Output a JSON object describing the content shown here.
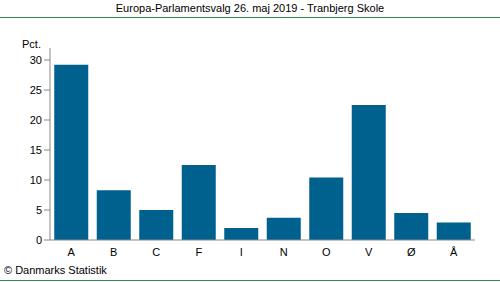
{
  "chart_data": {
    "type": "bar",
    "title": "Europa-Parlamentsvalg 26. maj 2019 - Tranbjerg Skole",
    "ylabel": "Pct.",
    "annotations": [
      "© Danmarks Statistik"
    ],
    "categories": [
      "A",
      "B",
      "C",
      "F",
      "I",
      "N",
      "O",
      "V",
      "Ø",
      "Å"
    ],
    "values": [
      29.2,
      8.3,
      5.0,
      12.5,
      2.0,
      3.7,
      10.4,
      22.5,
      4.5,
      2.9
    ],
    "color": "#00618f",
    "ylim": [
      0,
      32
    ],
    "yticks": [
      0,
      5,
      10,
      15,
      20,
      25,
      30
    ],
    "grid": false,
    "data_labels": false
  }
}
